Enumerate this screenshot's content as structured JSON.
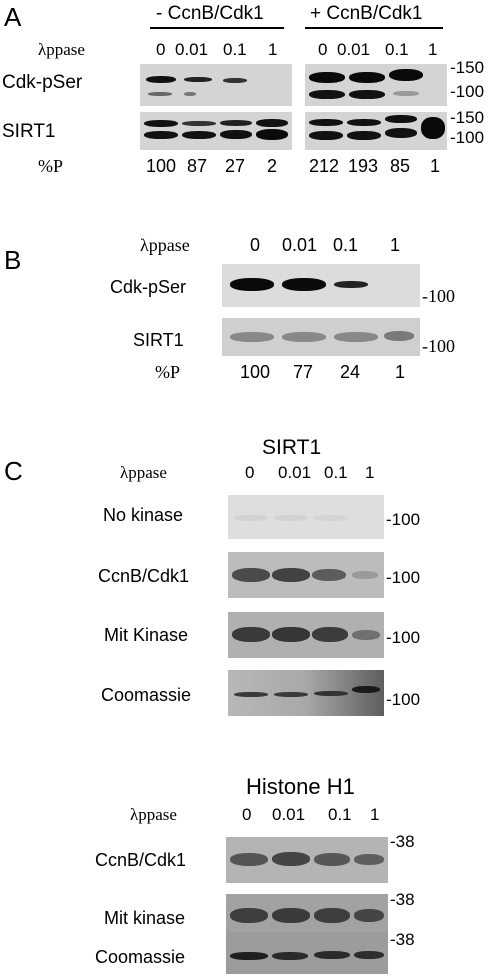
{
  "panelA": {
    "letter": "A",
    "group_minus": "- CcnB/Cdk1",
    "group_plus": "+ CcnB/Cdk1",
    "ppase_label": "λppase",
    "ppase_minus": [
      "0",
      "0.01",
      "0.1",
      "1"
    ],
    "ppase_plus": [
      "0",
      "0.01",
      "0.1",
      "1"
    ],
    "row1_label": "Cdk-pSer",
    "row2_label": "SIRT1",
    "pct_label": "%P",
    "pct_minus": [
      "100",
      "87",
      "27",
      "2"
    ],
    "pct_plus": [
      "212",
      "193",
      "85",
      "1"
    ],
    "mw_row1": [
      "150",
      "100"
    ],
    "mw_row2": [
      "150",
      "100"
    ]
  },
  "panelB": {
    "letter": "B",
    "ppase_label": "λppase",
    "ppase": [
      "0",
      "0.01",
      "0.1",
      "1"
    ],
    "row1_label": "Cdk-pSer",
    "row2_label": "SIRT1",
    "pct_label": "%P",
    "pct": [
      "100",
      "77",
      "24",
      "1"
    ],
    "mw_row1": "-100",
    "mw_row2": "-100"
  },
  "panelC": {
    "letter": "C",
    "sirt1_title": "SIRT1",
    "ppase_label": "λppase",
    "ppase": [
      "0",
      "0.01",
      "0.1",
      "1"
    ],
    "rows": [
      {
        "label": "No kinase",
        "mw": "-100"
      },
      {
        "label": "CcnB/Cdk1",
        "mw": "-100"
      },
      {
        "label": "Mit Kinase",
        "mw": "-100"
      },
      {
        "label": "Coomassie",
        "mw": "-100"
      }
    ],
    "h1_title": "Histone H1",
    "h1_ppase_label": "λppase",
    "h1_ppase": [
      "0",
      "0.01",
      "0.1",
      "1"
    ],
    "h1_rows": [
      {
        "label": "CcnB/Cdk1",
        "mw": "-38"
      },
      {
        "label": "Mit kinase",
        "mw": "-38"
      },
      {
        "label": "Coomassie",
        "mw": "-38"
      }
    ]
  }
}
